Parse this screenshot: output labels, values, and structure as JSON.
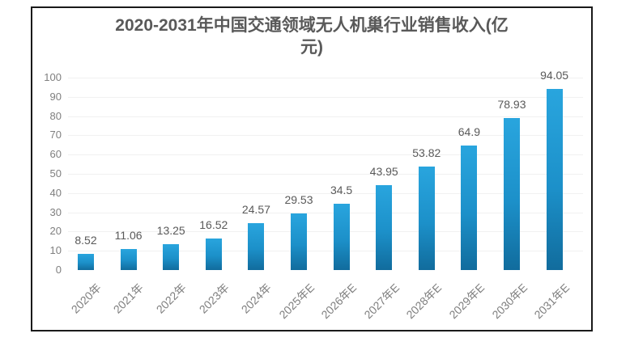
{
  "colors": {
    "background": "#ffffff",
    "frame_border": "#1a1a1a",
    "title_text": "#595959",
    "value_label_text": "#595959",
    "axis_label_text": "#7f7f7f",
    "gridline": "#f1f1f1",
    "bar_gradient_top": "#29a5de",
    "bar_gradient_mid": "#1c90c9",
    "bar_gradient_bottom": "#116c9d"
  },
  "chart_data": {
    "type": "bar",
    "title": "2020-2031年中国交通领域无人机巢行业销售收入(亿元)",
    "title_lines": [
      "2020-2031年中国交通领域无人机巢行业销售收入(亿",
      "元)"
    ],
    "categories": [
      "2020年",
      "2021年",
      "2022年",
      "2023年",
      "2024年",
      "2025年E",
      "2026年E",
      "2027年E",
      "2028年E",
      "2029年E",
      "2030年E",
      "2031年E"
    ],
    "values": [
      8.52,
      11.06,
      13.25,
      16.52,
      24.57,
      29.53,
      34.5,
      43.95,
      53.82,
      64.9,
      78.93,
      94.05
    ],
    "value_labels": [
      "8.52",
      "11.06",
      "13.25",
      "16.52",
      "24.57",
      "29.53",
      "34.5",
      "43.95",
      "53.82",
      "64.9",
      "78.93",
      "94.05"
    ],
    "xlabel": "",
    "ylabel": "",
    "ylim": [
      0,
      100
    ],
    "yticks": [
      0,
      10,
      20,
      30,
      40,
      50,
      60,
      70,
      80,
      90,
      100
    ],
    "grid": "horizontal",
    "legend": "none",
    "data_labels": "above bars",
    "x_tick_rotation_deg": 45
  }
}
